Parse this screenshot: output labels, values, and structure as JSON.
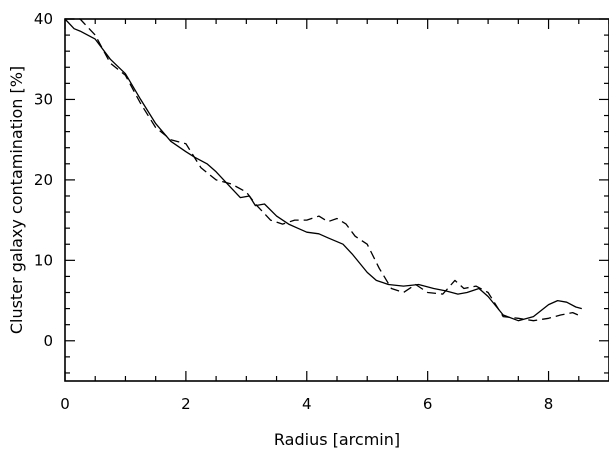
{
  "chart_data": {
    "type": "line",
    "title": "",
    "xlabel": "Radius [arcmin]",
    "ylabel": "Cluster galaxy contamination [%]",
    "xlim": [
      0,
      9
    ],
    "ylim": [
      -5,
      40
    ],
    "xticks": [
      "0",
      "2",
      "4",
      "6",
      "8"
    ],
    "yticks": [
      "0",
      "10",
      "20",
      "30",
      "40"
    ],
    "grid": false,
    "legend": "none",
    "series": [
      {
        "style": "solid",
        "color": "#000000",
        "x": [
          0.0,
          0.15,
          0.25,
          0.5,
          0.75,
          1.0,
          1.25,
          1.5,
          1.75,
          2.0,
          2.15,
          2.35,
          2.5,
          2.75,
          2.9,
          3.05,
          3.15,
          3.3,
          3.5,
          3.7,
          3.85,
          4.0,
          4.2,
          4.35,
          4.6,
          4.75,
          5.0,
          5.15,
          5.35,
          5.6,
          5.85,
          6.1,
          6.3,
          6.5,
          6.65,
          6.85,
          7.0,
          7.25,
          7.5,
          7.75,
          8.0,
          8.15,
          8.3,
          8.45,
          8.55
        ],
        "y": [
          40.0,
          38.8,
          38.5,
          37.5,
          35.0,
          33.2,
          30.0,
          27.0,
          24.8,
          23.5,
          22.8,
          22.0,
          21.0,
          19.0,
          17.8,
          18.0,
          16.8,
          17.0,
          15.5,
          14.5,
          14.0,
          13.5,
          13.3,
          12.8,
          12.0,
          10.8,
          8.5,
          7.5,
          7.0,
          6.8,
          7.0,
          6.5,
          6.2,
          5.8,
          6.0,
          6.5,
          5.5,
          3.2,
          2.5,
          3.0,
          4.5,
          5.0,
          4.8,
          4.2,
          4.0
        ]
      },
      {
        "style": "dashed",
        "color": "#000000",
        "x": [
          0.0,
          0.25,
          0.5,
          0.75,
          1.0,
          1.25,
          1.5,
          1.75,
          2.0,
          2.25,
          2.5,
          2.75,
          3.0,
          3.15,
          3.4,
          3.6,
          3.8,
          4.0,
          4.2,
          4.35,
          4.5,
          4.65,
          4.8,
          5.0,
          5.2,
          5.4,
          5.6,
          5.8,
          6.0,
          6.25,
          6.45,
          6.6,
          6.8,
          7.0,
          7.25,
          7.5,
          7.75,
          8.0,
          8.2,
          8.4,
          8.55
        ],
        "y": [
          40.0,
          40.0,
          38.0,
          34.5,
          33.0,
          29.5,
          26.5,
          25.0,
          24.5,
          21.5,
          20.0,
          19.5,
          18.5,
          17.0,
          15.0,
          14.5,
          15.0,
          15.0,
          15.5,
          14.8,
          15.2,
          14.5,
          13.0,
          12.0,
          9.0,
          6.5,
          6.0,
          7.0,
          6.0,
          5.8,
          7.5,
          6.5,
          6.8,
          6.0,
          3.0,
          2.8,
          2.5,
          2.8,
          3.2,
          3.5,
          3.0
        ]
      }
    ]
  }
}
